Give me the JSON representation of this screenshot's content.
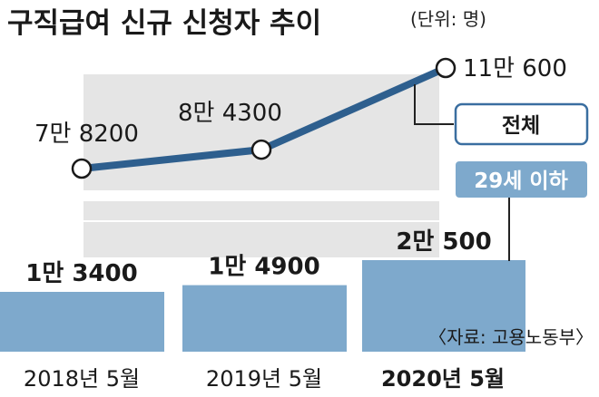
{
  "header": {
    "title": "구직급여 신규 신청자 추이",
    "unit": "(단위: 명)"
  },
  "source": "〈자료: 고용노동부〉",
  "colors": {
    "line": "#2e5f8e",
    "bar": "#7ea9cc",
    "band": "#e5e5e5",
    "legend_bar_fill": "#7ea9cc"
  },
  "chart_data": {
    "type": "bar",
    "categories": [
      "2018년 5월",
      "2019년 5월",
      "2020년 5월"
    ],
    "series": [
      {
        "name": "전체",
        "type": "line",
        "values": [
          78200,
          84300,
          110600
        ],
        "labels": [
          "7만 8200",
          "8만 4300",
          "11만 600"
        ]
      },
      {
        "name": "29세 이하",
        "type": "bar",
        "values": [
          13400,
          14900,
          20500
        ],
        "labels": [
          "1만 3400",
          "1만 4900",
          "2만 500"
        ]
      }
    ]
  }
}
